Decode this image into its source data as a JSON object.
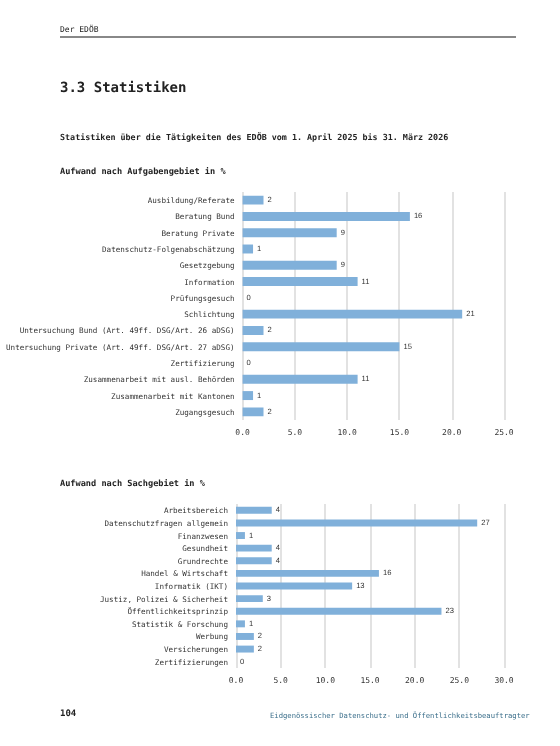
{
  "chart_data": [
    {
      "type": "bar",
      "orientation": "horizontal",
      "title": "Aufwand nach Aufgabengebiet in %",
      "annotations": [
        "Der EDÖB",
        "3.3 Statistiken",
        "Statistiken über die Tätigkeiten des EDÖB vom 1. April 2025 bis 31. März 2026"
      ],
      "categories": [
        "Ausbildung/Referate",
        "Beratung Bund",
        "Beratung Private",
        "Datenschutz-Folgenabschätzung",
        "Gesetzgebung",
        "Information",
        "Prüfungsgesuch",
        "Schlichtung",
        "Untersuchung Bund (Art. 49ff. DSG/Art. 26 aDSG)",
        "Untersuchung Private (Art. 49ff. DSG/Art. 27 aDSG)",
        "Zertifizierung",
        "Zusammenarbeit mit ausl. Behörden",
        "Zusammenarbeit mit Kantonen",
        "Zugangsgesuch"
      ],
      "values": [
        2,
        16,
        9,
        1,
        9,
        11,
        0,
        21,
        2,
        15,
        0,
        11,
        1,
        2
      ],
      "color": "#80b0da",
      "xlim": [
        0,
        25
      ],
      "xticks": [
        {
          "value": 0,
          "label": "0.0"
        },
        {
          "value": 5,
          "label": "5.0"
        },
        {
          "value": 10,
          "label": "10.0"
        },
        {
          "value": 15,
          "label": "15.0"
        },
        {
          "value": 20,
          "label": "20.0"
        },
        {
          "value": 25,
          "label": "25.0"
        }
      ],
      "grid": "x",
      "data_labels": true
    },
    {
      "type": "bar",
      "orientation": "horizontal",
      "title": "Aufwand nach Sachgebiet in %",
      "annotations": [
        "104",
        "Eidgenössischer Datenschutz- und Öffentlichkeitsbeauftragter"
      ],
      "categories": [
        "Arbeitsbereich",
        "Datenschutzfragen allgemein",
        "Finanzwesen",
        "Gesundheit",
        "Grundrechte",
        "Handel & Wirtschaft",
        "Informatik (IKT)",
        "Justiz, Polizei & Sicherheit",
        "Öffentlichkeitsprinzip",
        "Statistik & Forschung",
        "Werbung",
        "Versicherungen",
        "Zertifizierungen"
      ],
      "values": [
        4,
        27,
        1,
        4,
        4,
        16,
        13,
        3,
        23,
        1,
        2,
        2,
        0
      ],
      "color": "#80b0da",
      "xlim": [
        0,
        30
      ],
      "xticks": [
        {
          "value": 0,
          "label": "0.0"
        },
        {
          "value": 5,
          "label": "5.0"
        },
        {
          "value": 10,
          "label": "10.0"
        },
        {
          "value": 15,
          "label": "15.0"
        },
        {
          "value": 20,
          "label": "20.0"
        },
        {
          "value": 25,
          "label": "25.0"
        },
        {
          "value": 30,
          "label": "30.0"
        }
      ],
      "grid": "x",
      "data_labels": true
    }
  ]
}
